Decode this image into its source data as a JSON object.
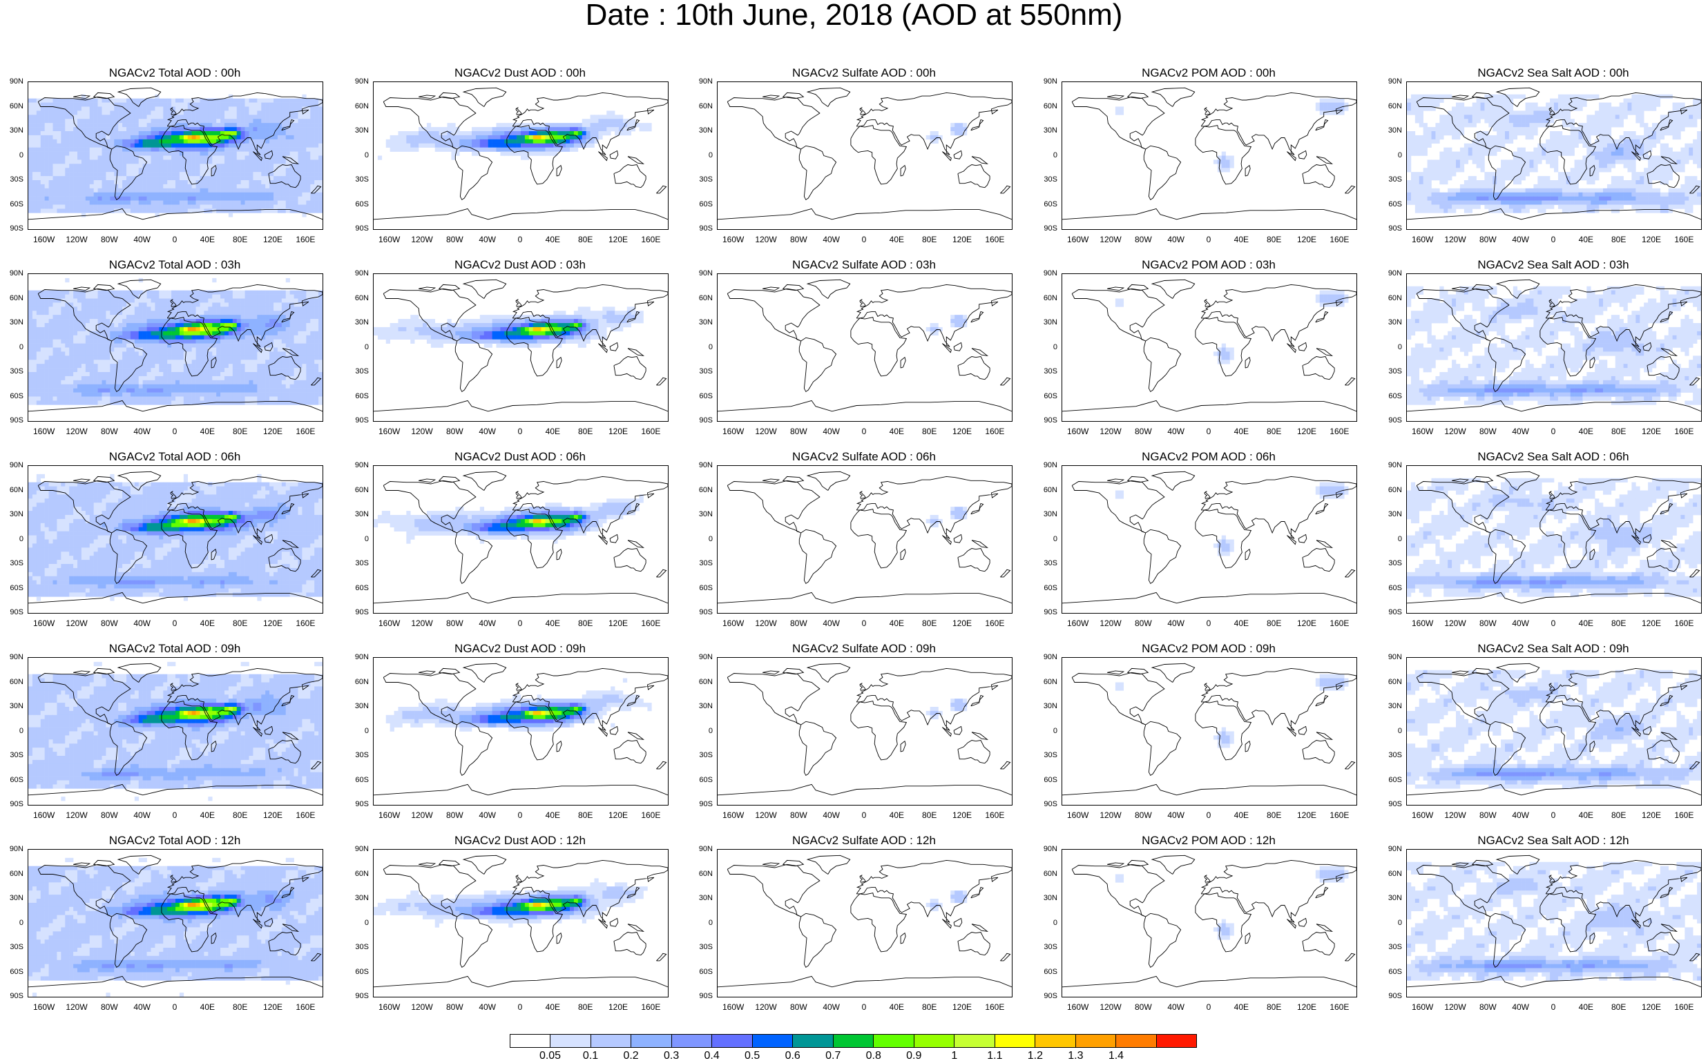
{
  "title": "Date : 10th June, 2018 (AOD at 550nm)",
  "lat_labels": [
    "90N",
    "60N",
    "30N",
    "0",
    "30S",
    "60S",
    "90S"
  ],
  "lon_labels": [
    "160W",
    "120W",
    "80W",
    "40W",
    "0",
    "40E",
    "80E",
    "120E",
    "160E"
  ],
  "panels": [
    {
      "title": "NGACv2 Total AOD : 00h",
      "species": "total",
      "hour": "00h"
    },
    {
      "title": "NGACv2 Dust AOD : 00h",
      "species": "dust",
      "hour": "00h"
    },
    {
      "title": "NGACv2 Sulfate AOD : 00h",
      "species": "sulfate",
      "hour": "00h"
    },
    {
      "title": "NGACv2 POM AOD : 00h",
      "species": "pom",
      "hour": "00h"
    },
    {
      "title": "NGACv2 Sea Salt AOD : 00h",
      "species": "seasalt",
      "hour": "00h"
    },
    {
      "title": "NGACv2 Total AOD : 03h",
      "species": "total",
      "hour": "03h"
    },
    {
      "title": "NGACv2 Dust AOD : 03h",
      "species": "dust",
      "hour": "03h"
    },
    {
      "title": "NGACv2 Sulfate AOD : 03h",
      "species": "sulfate",
      "hour": "03h"
    },
    {
      "title": "NGACv2 POM AOD : 03h",
      "species": "pom",
      "hour": "03h"
    },
    {
      "title": "NGACv2 Sea Salt AOD : 03h",
      "species": "seasalt",
      "hour": "03h"
    },
    {
      "title": "NGACv2 Total AOD : 06h",
      "species": "total",
      "hour": "06h"
    },
    {
      "title": "NGACv2 Dust AOD : 06h",
      "species": "dust",
      "hour": "06h"
    },
    {
      "title": "NGACv2 Sulfate AOD : 06h",
      "species": "sulfate",
      "hour": "06h"
    },
    {
      "title": "NGACv2 POM AOD : 06h",
      "species": "pom",
      "hour": "06h"
    },
    {
      "title": "NGACv2 Sea Salt AOD : 06h",
      "species": "seasalt",
      "hour": "06h"
    },
    {
      "title": "NGACv2 Total AOD : 09h",
      "species": "total",
      "hour": "09h"
    },
    {
      "title": "NGACv2 Dust AOD : 09h",
      "species": "dust",
      "hour": "09h"
    },
    {
      "title": "NGACv2 Sulfate AOD : 09h",
      "species": "sulfate",
      "hour": "09h"
    },
    {
      "title": "NGACv2 POM AOD : 09h",
      "species": "pom",
      "hour": "09h"
    },
    {
      "title": "NGACv2 Sea Salt  AOD : 09h",
      "species": "seasalt",
      "hour": "09h"
    },
    {
      "title": "NGACv2 Total AOD  : 12h",
      "species": "total",
      "hour": "12h"
    },
    {
      "title": "NGACv2 Dust AOD : 12h",
      "species": "dust",
      "hour": "12h"
    },
    {
      "title": "NGACv2 Sulfate AOD : 12h",
      "species": "sulfate",
      "hour": "12h"
    },
    {
      "title": "NGACv2 POM  AOD : 12h",
      "species": "pom",
      "hour": "12h"
    },
    {
      "title": "NGACv2 Sea Salt  AOD : 12h",
      "species": "seasalt",
      "hour": "12h"
    }
  ],
  "colorbar": {
    "colors": [
      "#ffffff",
      "#d6e2ff",
      "#b5c9ff",
      "#8eb2ff",
      "#7f96ff",
      "#6370ff",
      "#0063ff",
      "#009696",
      "#00c633",
      "#63ff00",
      "#96ff00",
      "#c6ff33",
      "#ffff00",
      "#ffc600",
      "#ffa000",
      "#ff7c00",
      "#ff1900"
    ],
    "labels": [
      "0.05",
      "0.1",
      "0.2",
      "0.3",
      "0.4",
      "0.5",
      "0.6",
      "0.7",
      "0.8",
      "0.9",
      "1",
      "1.1",
      "1.2",
      "1.3",
      "1.4"
    ]
  }
}
